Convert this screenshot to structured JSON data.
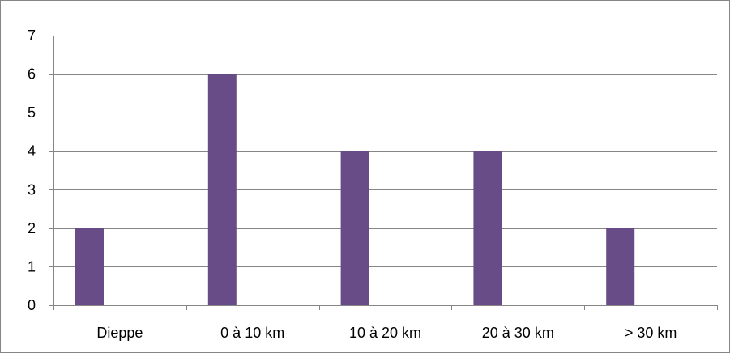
{
  "chart_data": {
    "type": "bar",
    "categories": [
      "Dieppe",
      "0 à 10 km",
      "10 à 20 km",
      "20 à 30 km",
      "> 30 km"
    ],
    "values": [
      2,
      6,
      4,
      4,
      2
    ],
    "title": "",
    "xlabel": "",
    "ylabel": "",
    "ylim": [
      0,
      7
    ],
    "yticks": [
      0,
      1,
      2,
      3,
      4,
      5,
      6,
      7
    ],
    "grid": true,
    "legend": "none",
    "bar_color": "#684C87",
    "grid_color": "#868686"
  }
}
